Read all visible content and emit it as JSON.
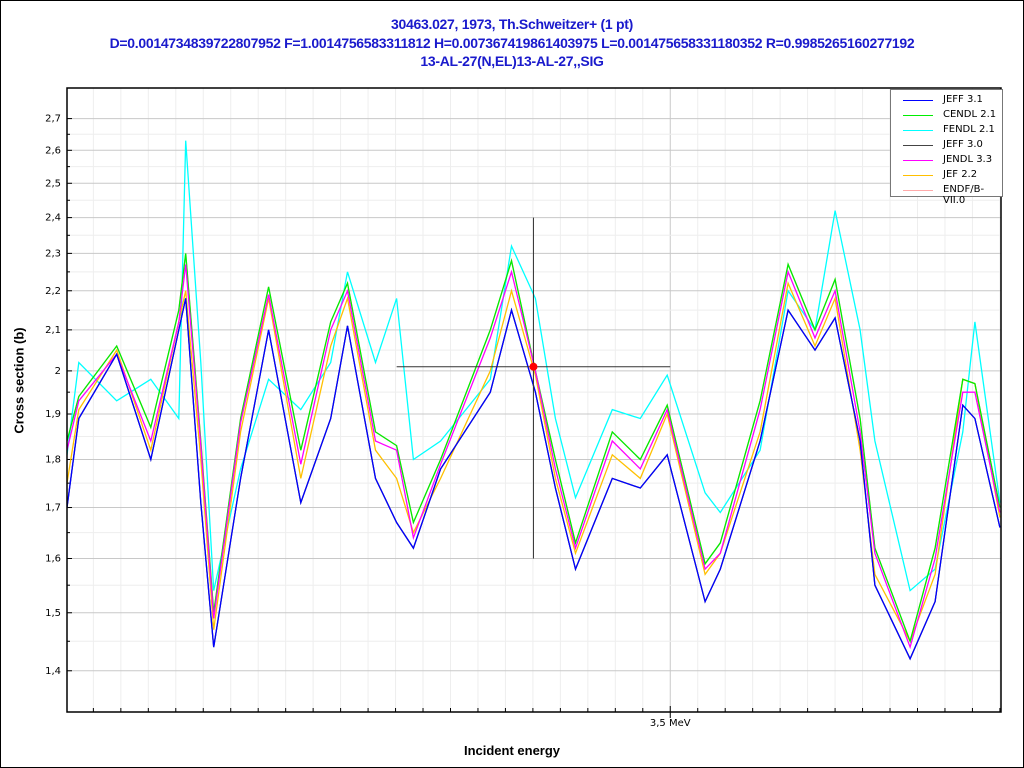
{
  "header": {
    "line1": "30463.027, 1973, Th.Schweitzer+ (1 pt)",
    "line2": "D=0.0014734839722807952 F=1.0014756583311812 H=0.007367419861403975 L=0.001475658331180352 R=0.9985265160277192",
    "line3": "13-AL-27(N,EL)13-AL-27,,SIG"
  },
  "chart_data": {
    "type": "line",
    "title": "30463.027, 1973, Th.Schweitzer+ (1 pt)",
    "xlabel": "Incident energy",
    "ylabel": "Cross section (b)",
    "xscale": "linear",
    "yscale": "log",
    "xlim": [
      3.2804,
      3.6204
    ],
    "ylim": [
      1.333,
      2.8
    ],
    "x_unit": "MeV",
    "x_ticks": [
      {
        "value": 3.5,
        "label": "3,5 MeV"
      }
    ],
    "y_ticks": [
      {
        "value": 2.7,
        "label": "2,7"
      },
      {
        "value": 2.6,
        "label": "2,6"
      },
      {
        "value": 2.5,
        "label": "2,5"
      },
      {
        "value": 2.4,
        "label": "2,4"
      },
      {
        "value": 2.3,
        "label": "2,3"
      },
      {
        "value": 2.2,
        "label": "2,2"
      },
      {
        "value": 2.1,
        "label": "2,1"
      },
      {
        "value": 2.0,
        "label": "2"
      },
      {
        "value": 1.9,
        "label": "1,9"
      },
      {
        "value": 1.8,
        "label": "1,8"
      },
      {
        "value": 1.7,
        "label": "1,7"
      },
      {
        "value": 1.6,
        "label": "1,6"
      },
      {
        "value": 1.5,
        "label": "1,5"
      },
      {
        "value": 1.4,
        "label": "1,4"
      }
    ],
    "grid": true,
    "legend_position": "top-right",
    "x": [
      3.2804,
      3.2847,
      3.2985,
      3.3109,
      3.3211,
      3.3236,
      3.3291,
      3.3338,
      3.3436,
      3.3538,
      3.3655,
      3.3764,
      3.3825,
      3.3927,
      3.4004,
      3.4065,
      3.4164,
      3.4345,
      3.4422,
      3.4509,
      3.4582,
      3.4655,
      3.4789,
      3.4891,
      3.4989,
      3.5127,
      3.5182,
      3.5327,
      3.5429,
      3.5527,
      3.56,
      3.5691,
      3.5745,
      3.5873,
      3.5964,
      3.6065,
      3.6109,
      3.62
    ],
    "series": [
      {
        "name": "ENDF/B-VII.0",
        "color": "#ffaaaa",
        "values": [
          1.84,
          1.94,
          2.06,
          1.87,
          2.15,
          2.3,
          1.84,
          1.5,
          1.89,
          2.21,
          1.82,
          2.12,
          2.22,
          1.86,
          1.83,
          1.67,
          1.8,
          2.1,
          2.28,
          2.0,
          1.8,
          1.63,
          1.86,
          1.8,
          1.92,
          1.59,
          1.63,
          1.93,
          2.27,
          2.1,
          2.23,
          1.89,
          1.62,
          1.45,
          1.62,
          1.98,
          1.97,
          1.7
        ]
      },
      {
        "name": "FENDL 2.1",
        "color": "#00ffff",
        "values": [
          1.81,
          2.02,
          1.93,
          1.98,
          1.89,
          2.63,
          2.02,
          1.54,
          1.78,
          1.98,
          1.91,
          2.02,
          2.25,
          2.02,
          2.18,
          1.8,
          1.84,
          1.98,
          2.32,
          2.18,
          1.89,
          1.72,
          1.91,
          1.89,
          1.99,
          1.73,
          1.69,
          1.82,
          2.2,
          2.1,
          2.42,
          2.1,
          1.84,
          1.54,
          1.58,
          1.86,
          2.12,
          1.71
        ]
      },
      {
        "name": "JEF 2.2",
        "color": "#ffc000",
        "values": [
          1.75,
          1.91,
          2.05,
          1.82,
          2.12,
          2.2,
          1.8,
          1.47,
          1.86,
          2.18,
          1.76,
          2.06,
          2.18,
          1.82,
          1.76,
          1.65,
          1.76,
          2.0,
          2.2,
          1.99,
          1.76,
          1.61,
          1.81,
          1.76,
          1.9,
          1.57,
          1.61,
          1.86,
          2.22,
          2.06,
          2.18,
          1.82,
          1.57,
          1.45,
          1.57,
          1.98,
          1.97,
          1.68
        ]
      },
      {
        "name": "CENDL 2.1",
        "color": "#00ee00",
        "values": [
          1.84,
          1.94,
          2.06,
          1.87,
          2.15,
          2.3,
          1.84,
          1.5,
          1.89,
          2.21,
          1.82,
          2.12,
          2.22,
          1.86,
          1.83,
          1.67,
          1.8,
          2.1,
          2.28,
          2.0,
          1.8,
          1.63,
          1.86,
          1.8,
          1.92,
          1.59,
          1.63,
          1.93,
          2.27,
          2.1,
          2.23,
          1.89,
          1.62,
          1.45,
          1.62,
          1.98,
          1.97,
          1.7
        ]
      },
      {
        "name": "JENDL 3.3",
        "color": "#ff00ff",
        "values": [
          1.82,
          1.93,
          2.04,
          1.84,
          2.12,
          2.27,
          1.83,
          1.49,
          1.88,
          2.19,
          1.79,
          2.1,
          2.2,
          1.84,
          1.82,
          1.64,
          1.79,
          2.08,
          2.25,
          2.0,
          1.78,
          1.62,
          1.84,
          1.78,
          1.91,
          1.58,
          1.61,
          1.91,
          2.25,
          2.08,
          2.2,
          1.86,
          1.61,
          1.44,
          1.6,
          1.95,
          1.95,
          1.69
        ]
      },
      {
        "name": "JEFF 3.0",
        "color": "#444444",
        "values": [
          1.7,
          1.89,
          2.04,
          1.8,
          2.1,
          2.18,
          1.71,
          1.44,
          1.76,
          2.1,
          1.71,
          1.89,
          2.11,
          1.76,
          1.67,
          1.62,
          1.78,
          1.95,
          2.15,
          1.95,
          1.74,
          1.58,
          1.76,
          1.74,
          1.81,
          1.52,
          1.58,
          1.84,
          2.15,
          2.05,
          2.13,
          1.84,
          1.55,
          1.42,
          1.52,
          1.92,
          1.89,
          1.66
        ]
      },
      {
        "name": "JEFF 3.1",
        "color": "#0000ff",
        "values": [
          1.7,
          1.89,
          2.04,
          1.8,
          2.1,
          2.18,
          1.71,
          1.44,
          1.76,
          2.1,
          1.71,
          1.89,
          2.11,
          1.76,
          1.67,
          1.62,
          1.78,
          1.95,
          2.15,
          1.95,
          1.74,
          1.58,
          1.76,
          1.74,
          1.81,
          1.52,
          1.58,
          1.84,
          2.15,
          2.05,
          2.13,
          1.84,
          1.55,
          1.42,
          1.52,
          1.92,
          1.89,
          1.66
        ]
      }
    ],
    "legend_order": [
      "JEFF 3.1",
      "CENDL 2.1",
      "FENDL 2.1",
      "JEFF 3.0",
      "JENDL 3.3",
      "JEF 2.2",
      "ENDF/B-VII.0"
    ],
    "experimental_point": {
      "x": 3.4502,
      "y": 2.01,
      "x_err": [
        3.4004,
        3.5
      ],
      "y_err": [
        1.6,
        2.4
      ],
      "color": "#ff0000"
    }
  },
  "legend": {
    "items": [
      {
        "label": "JEFF 3.1",
        "color": "#0000ff"
      },
      {
        "label": "CENDL 2.1",
        "color": "#00ee00"
      },
      {
        "label": "FENDL 2.1",
        "color": "#00ffff"
      },
      {
        "label": "JEFF 3.0",
        "color": "#444444"
      },
      {
        "label": "JENDL 3.3",
        "color": "#ff00ff"
      },
      {
        "label": "JEF 2.2",
        "color": "#ffc000"
      },
      {
        "label": "ENDF/B-VII.0",
        "color": "#ffaaaa"
      }
    ]
  }
}
